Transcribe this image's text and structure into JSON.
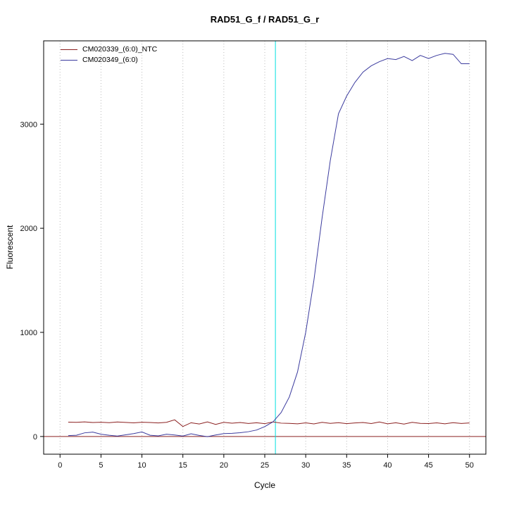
{
  "chart_data": {
    "type": "line",
    "title": "RAD51_G_f / RAD51_G_r",
    "xlabel": "Cycle",
    "ylabel": "Fluorescent",
    "xlim": [
      0,
      50
    ],
    "ylim": [
      -170,
      3800
    ],
    "xticks": [
      0,
      5,
      10,
      15,
      20,
      25,
      30,
      35,
      40,
      45,
      50
    ],
    "yticks": [
      0,
      1000,
      2000,
      3000
    ],
    "grid": "vertical-dotted",
    "legend_position": "top-left",
    "threshold_cycle_line": 26.3,
    "baseline_value": 0,
    "colors": {
      "grid": "#bbbbbb",
      "box": "#000000",
      "threshold": "#00e0e0",
      "baseline": "#8b2020"
    },
    "x": [
      1,
      2,
      3,
      4,
      5,
      6,
      7,
      8,
      9,
      10,
      11,
      12,
      13,
      14,
      15,
      16,
      17,
      18,
      19,
      20,
      21,
      22,
      23,
      24,
      25,
      26,
      27,
      28,
      29,
      30,
      31,
      32,
      33,
      34,
      35,
      36,
      37,
      38,
      39,
      40,
      41,
      42,
      43,
      44,
      45,
      46,
      47,
      48,
      49,
      50
    ],
    "series": [
      {
        "name": "CM020339_(6:0)_NTC",
        "color": "#8b2020",
        "values": [
          138,
          136,
          140,
          134,
          137,
          133,
          139,
          135,
          131,
          137,
          134,
          130,
          136,
          160,
          96,
          132,
          120,
          140,
          116,
          136,
          128,
          134,
          125,
          132,
          123,
          140,
          128,
          126,
          122,
          131,
          121,
          136,
          126,
          133,
          123,
          130,
          134,
          124,
          139,
          122,
          132,
          119,
          136,
          126,
          124,
          131,
          122,
          133,
          125,
          130
        ]
      },
      {
        "name": "CM020349_(6:0)",
        "color": "#3b3b9e",
        "values": [
          8,
          12,
          35,
          42,
          22,
          12,
          4,
          16,
          28,
          44,
          12,
          6,
          22,
          14,
          4,
          26,
          10,
          -2,
          14,
          28,
          30,
          36,
          46,
          62,
          95,
          140,
          230,
          380,
          620,
          1000,
          1500,
          2100,
          2650,
          3100,
          3270,
          3400,
          3500,
          3560,
          3600,
          3630,
          3620,
          3650,
          3610,
          3660,
          3630,
          3660,
          3680,
          3670,
          3580,
          3580
        ]
      }
    ]
  }
}
